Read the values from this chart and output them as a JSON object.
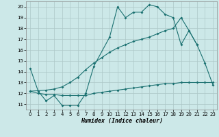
{
  "xlabel": "Humidex (Indice chaleur)",
  "bg_color": "#cce8e8",
  "grid_color": "#adc8c8",
  "line_color": "#1a7070",
  "xlim_min": -0.5,
  "xlim_max": 23.5,
  "ylim_min": 10.5,
  "ylim_max": 20.5,
  "xticks": [
    0,
    1,
    2,
    3,
    4,
    5,
    6,
    7,
    8,
    9,
    10,
    11,
    12,
    13,
    14,
    15,
    16,
    17,
    18,
    19,
    20,
    21,
    22,
    23
  ],
  "yticks": [
    11,
    12,
    13,
    14,
    15,
    16,
    17,
    18,
    19,
    20
  ],
  "line1_x": [
    0,
    1,
    2,
    3,
    4,
    5,
    6,
    7,
    8,
    10,
    11,
    12,
    13,
    14,
    15,
    16,
    17,
    18,
    19,
    20,
    21
  ],
  "line1_y": [
    14.3,
    12.2,
    11.3,
    11.8,
    10.9,
    10.9,
    10.9,
    12.0,
    14.5,
    17.2,
    20.0,
    19.0,
    19.5,
    19.5,
    20.2,
    20.0,
    19.3,
    19.0,
    16.5,
    17.8,
    16.5
  ],
  "line2_x": [
    0,
    1,
    2,
    3,
    4,
    5,
    6,
    7,
    8,
    9,
    10,
    11,
    12,
    13,
    14,
    15,
    16,
    17,
    18,
    19,
    20,
    21,
    22,
    23
  ],
  "line2_y": [
    12.2,
    12.0,
    11.9,
    11.9,
    11.8,
    11.8,
    11.8,
    11.8,
    12.0,
    12.1,
    12.2,
    12.3,
    12.4,
    12.5,
    12.6,
    12.7,
    12.8,
    12.9,
    12.9,
    13.0,
    13.0,
    13.0,
    13.0,
    13.0
  ],
  "line3_x": [
    0,
    2,
    3,
    4,
    5,
    6,
    7,
    8,
    9,
    10,
    11,
    12,
    13,
    14,
    15,
    16,
    17,
    18,
    19,
    20,
    21,
    22,
    23
  ],
  "line3_y": [
    12.2,
    12.3,
    12.4,
    12.6,
    13.0,
    13.5,
    14.2,
    14.8,
    15.3,
    15.8,
    16.2,
    16.5,
    16.8,
    17.0,
    17.2,
    17.5,
    17.8,
    18.0,
    19.0,
    17.8,
    16.5,
    14.8,
    12.8
  ]
}
